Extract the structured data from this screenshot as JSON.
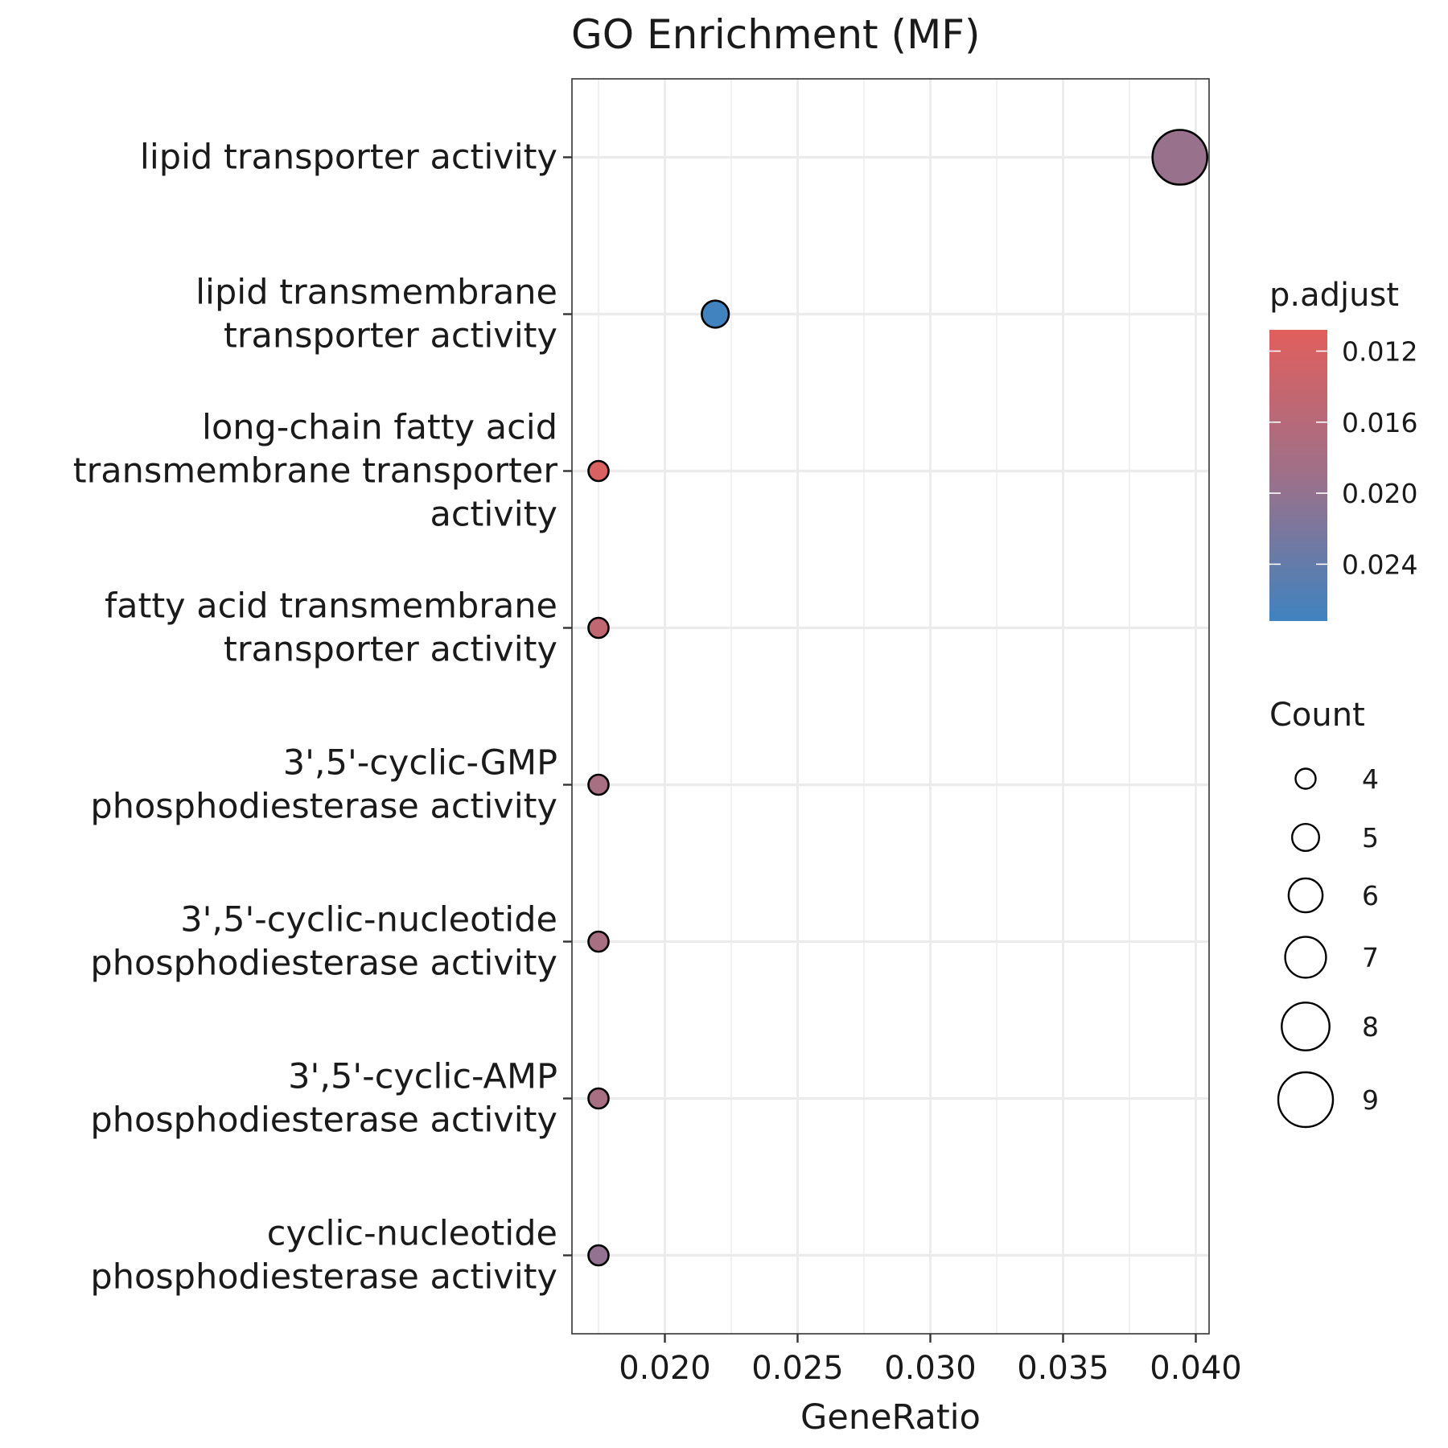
{
  "chart_data": {
    "type": "scatter",
    "title": "GO Enrichment (MF)",
    "xlabel": "GeneRatio",
    "ylabel": "",
    "xlim": [
      0.0165,
      0.0405
    ],
    "xticks": [
      0.02,
      0.025,
      0.03,
      0.035,
      0.04
    ],
    "xtick_labels": [
      "0.020",
      "0.025",
      "0.030",
      "0.035",
      "0.040"
    ],
    "grid": true,
    "points": [
      {
        "label": [
          "lipid transporter activity"
        ],
        "x": 0.0394,
        "count": 9,
        "p_adjust": 0.0195
      },
      {
        "label": [
          "lipid transmembrane",
          "transporter activity"
        ],
        "x": 0.0219,
        "count": 5,
        "p_adjust": 0.027
      },
      {
        "label": [
          "long-chain fatty acid",
          "transmembrane transporter",
          "activity"
        ],
        "x": 0.0175,
        "count": 4,
        "p_adjust": 0.0118
      },
      {
        "label": [
          "fatty acid transmembrane",
          "transporter activity"
        ],
        "x": 0.0175,
        "count": 4,
        "p_adjust": 0.0148
      },
      {
        "label": [
          "3',5'-cyclic-GMP",
          "phosphodiesterase activity"
        ],
        "x": 0.0175,
        "count": 4,
        "p_adjust": 0.0178
      },
      {
        "label": [
          "3',5'-cyclic-nucleotide",
          "phosphodiesterase activity"
        ],
        "x": 0.0175,
        "count": 4,
        "p_adjust": 0.0178
      },
      {
        "label": [
          "3',5'-cyclic-AMP",
          "phosphodiesterase activity"
        ],
        "x": 0.0175,
        "count": 4,
        "p_adjust": 0.0178
      },
      {
        "label": [
          "cyclic-nucleotide",
          "phosphodiesterase activity"
        ],
        "x": 0.0175,
        "count": 4,
        "p_adjust": 0.02
      }
    ],
    "color_legend": {
      "title": "p.adjust",
      "range": [
        0.0108,
        0.0272
      ],
      "low_color": "#e15f5c",
      "high_color": "#3f83bf",
      "ticks": [
        0.012,
        0.016,
        0.02,
        0.024
      ],
      "tick_labels": [
        "0.012",
        "0.016",
        "0.020",
        "0.024"
      ]
    },
    "size_legend": {
      "title": "Count",
      "values": [
        4,
        5,
        6,
        7,
        8,
        9
      ],
      "labels": [
        "4",
        "5",
        "6",
        "7",
        "8",
        "9"
      ]
    },
    "colors": {
      "grid": "#ebebeb",
      "axis": "#333333",
      "point_stroke": "#000000"
    }
  }
}
